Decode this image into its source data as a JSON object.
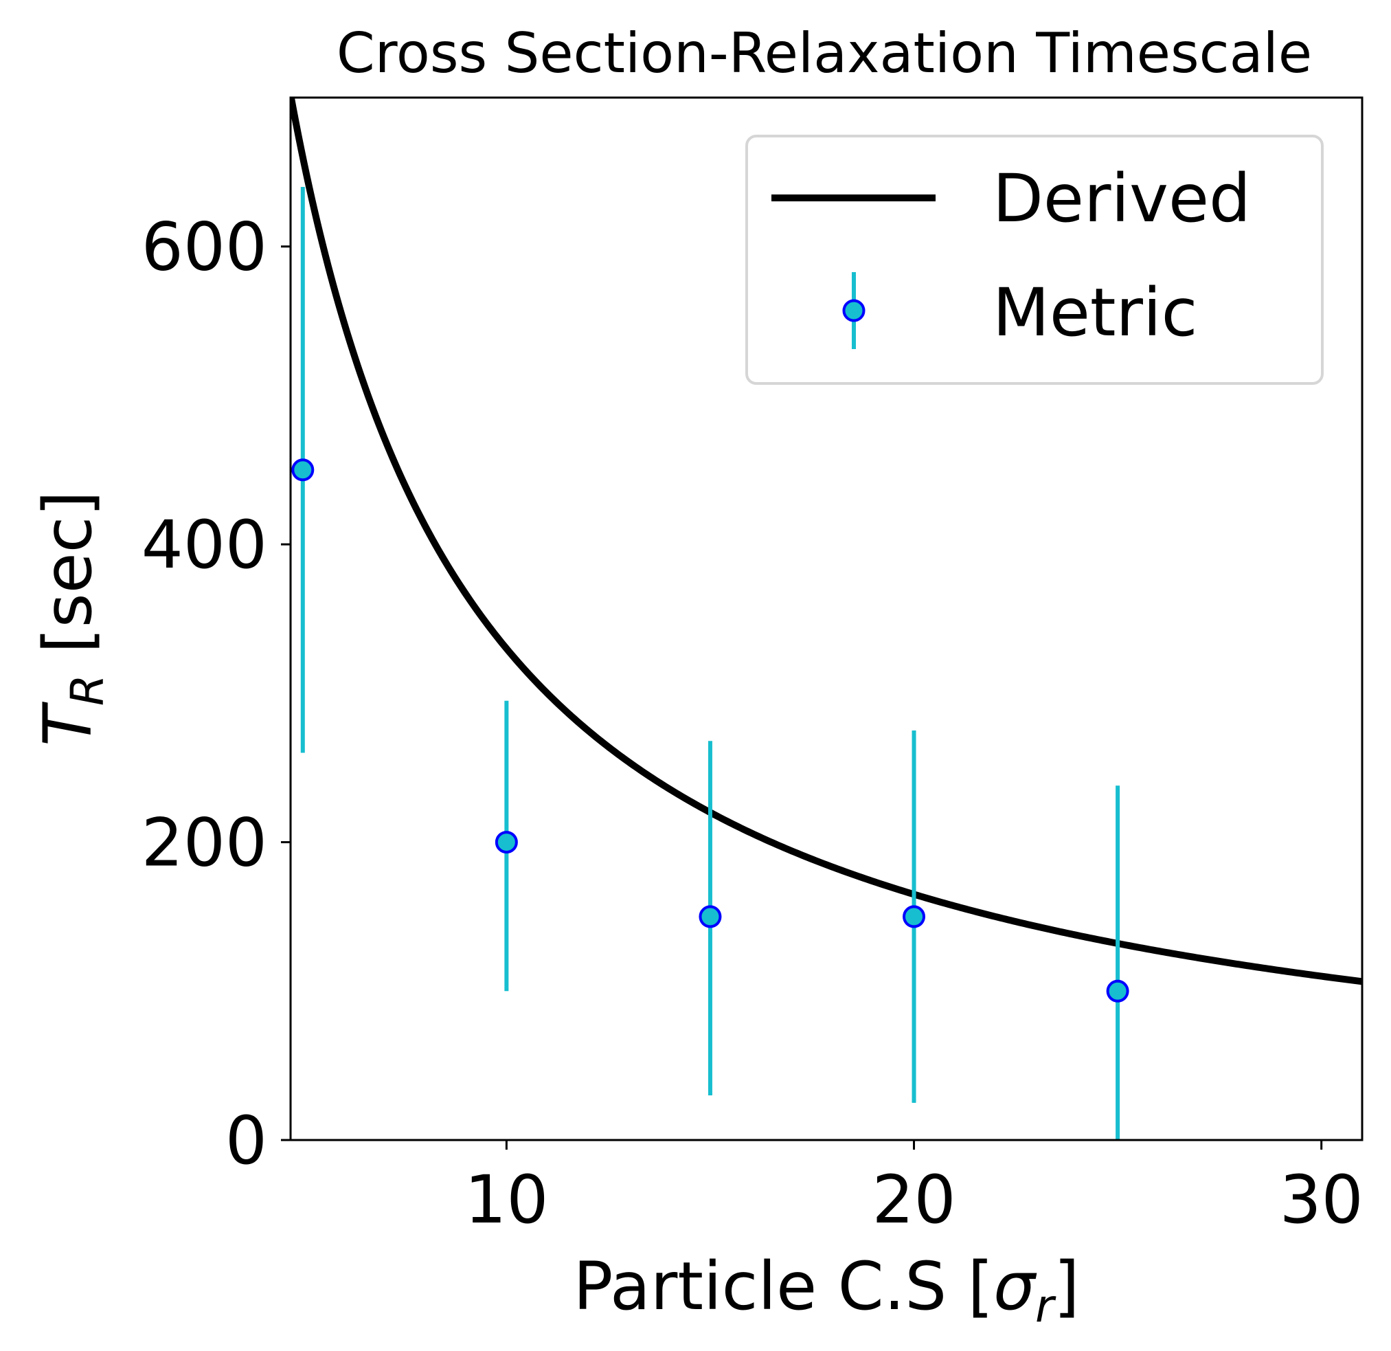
{
  "chart_data": {
    "type": "line",
    "title": "Cross Section-Relaxation Timescale",
    "xlabel": {
      "main": "Particle C.S [",
      "symbol": "σ",
      "subscript": "r",
      "close": "]"
    },
    "ylabel": {
      "symbol": "T",
      "subscript": "R",
      "rest": " [sec]"
    },
    "xlim": [
      4.7,
      31.0
    ],
    "ylim": [
      0,
      700
    ],
    "xticks": [
      10,
      20,
      30
    ],
    "yticks": [
      0,
      200,
      400,
      600
    ],
    "legend": {
      "position": "top-right",
      "entries": [
        "Derived",
        "Metric"
      ]
    },
    "series": [
      {
        "name": "Derived",
        "kind": "curve",
        "formula": "T = 3300 / x",
        "x_range": [
          4.7,
          31.0
        ],
        "color": "#000000"
      },
      {
        "name": "Metric",
        "kind": "errorbar",
        "x": [
          5,
          10,
          15,
          20,
          25
        ],
        "y": [
          450,
          200,
          150,
          150,
          100
        ],
        "yerr_low": [
          190,
          100,
          120,
          125,
          100
        ],
        "yerr_high": [
          190,
          95,
          118,
          125,
          138
        ],
        "line_color": "#17becf",
        "marker_fill": "#17becf",
        "marker_edge": "#0000ff"
      }
    ]
  }
}
